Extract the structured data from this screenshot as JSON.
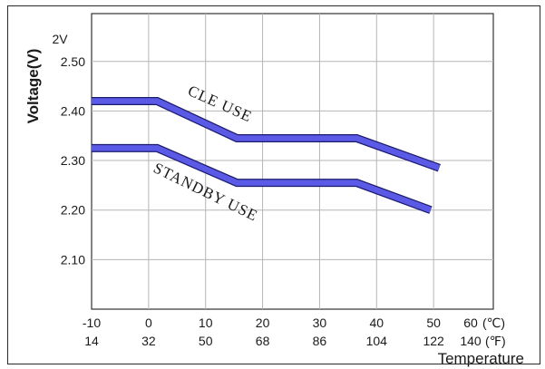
{
  "chart_data": {
    "type": "line",
    "title": "",
    "xlabel": "Temperature",
    "ylabel": "Voltage(V)",
    "y_unit_label": "2V",
    "x_unit_celsius": "(℃)",
    "x_unit_fahrenheit": "(℉)",
    "xlim": [
      -10,
      60
    ],
    "ylim": [
      2.0,
      2.56
    ],
    "y_ticks": [
      2.1,
      2.2,
      2.3,
      2.4,
      2.5
    ],
    "y_tick_labels": [
      "2.10",
      "2.20",
      "2.30",
      "2.40",
      "2.50"
    ],
    "x_ticks_celsius": [
      -10,
      0,
      10,
      20,
      30,
      40,
      50,
      60
    ],
    "x_tick_labels_celsius": [
      "-10",
      "0",
      "10",
      "20",
      "30",
      "40",
      "50",
      "60"
    ],
    "x_tick_labels_fahrenheit": [
      "14",
      "32",
      "50",
      "68",
      "86",
      "104",
      "122",
      "140"
    ],
    "grid": true,
    "line_color": "#5a5ae6",
    "line_edge_color": "#1c1c6e",
    "series": [
      {
        "name": "CLE USE",
        "x": [
          -10,
          1.5,
          15.5,
          36.5,
          51
        ],
        "y": [
          2.42,
          2.42,
          2.345,
          2.345,
          2.285
        ]
      },
      {
        "name": "STANDBY USE",
        "x": [
          -10,
          1.5,
          15.5,
          36.5,
          49.5
        ],
        "y": [
          2.325,
          2.325,
          2.255,
          2.255,
          2.2
        ]
      }
    ],
    "annotations": [
      {
        "text": "CLE USE",
        "series": 0
      },
      {
        "text": "STANDBY USE",
        "series": 1
      }
    ]
  }
}
